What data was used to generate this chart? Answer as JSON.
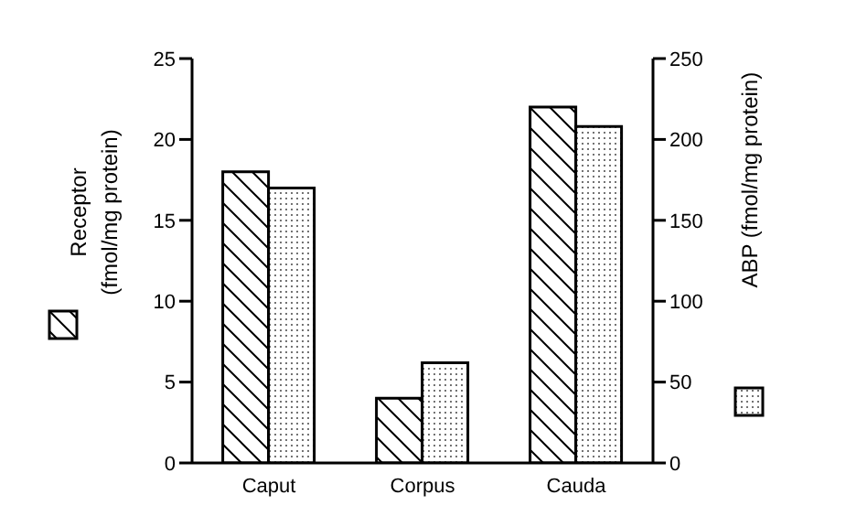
{
  "chart_data": {
    "type": "bar",
    "categories": [
      "Caput",
      "Corpus",
      "Cauda"
    ],
    "series": [
      {
        "color": "#000000",
        "values": [
          18,
          4,
          22
        ]
      },
      {
        "color": "#000000",
        "values": [
          170,
          62,
          208
        ],
        "axis": "y2"
      }
    ],
    "ylabel": "Receptor\n(fmol/mg protein)",
    "y2label": "ABP (fmol/mg protein)",
    "ylim": [
      0,
      25
    ],
    "yticks": [
      0,
      5,
      10,
      15,
      20,
      25
    ],
    "y2lim": [
      0,
      250
    ],
    "y2ticks": [
      0,
      50,
      100,
      150,
      200,
      250
    ],
    "grid": false
  }
}
